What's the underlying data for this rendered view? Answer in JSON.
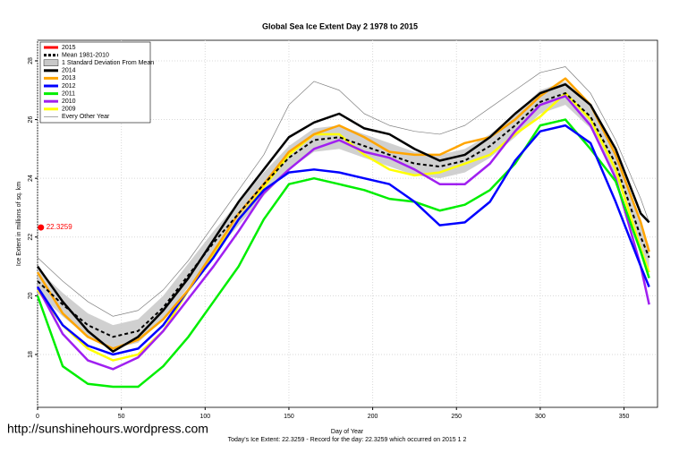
{
  "chart_data": {
    "type": "line",
    "title": "Global Sea Ice Extent Day 2 1978 to 2015",
    "x_label": "Day of Year",
    "y_label": "Ice Extent in millions of sq. km",
    "subtitle": "Today's Ice Extent: 22.3259  - Record for the day: 22.3259 which occurred on 2015 1 2",
    "watermark": "http://sunshinehours.wordpress.com",
    "xlim": [
      0,
      370
    ],
    "ylim": [
      16.2,
      28.7
    ],
    "xticks": [
      0,
      50,
      100,
      150,
      200,
      250,
      300,
      350
    ],
    "yticks": [
      18,
      20,
      22,
      24,
      26,
      28
    ],
    "grid": true,
    "legend": "top-left",
    "x": [
      0,
      15,
      30,
      45,
      60,
      75,
      90,
      105,
      120,
      135,
      150,
      165,
      180,
      195,
      210,
      225,
      240,
      255,
      270,
      285,
      300,
      315,
      330,
      345,
      360,
      365
    ],
    "series": [
      {
        "name": "2015",
        "color": "#ff0000",
        "x": [
          2
        ],
        "values": [
          22.3259
        ],
        "marker": true
      },
      {
        "name": "Mean 1981-2010",
        "color": "#000000",
        "dashed": true,
        "values": [
          20.5,
          19.7,
          19.0,
          18.6,
          18.8,
          19.6,
          20.7,
          21.8,
          22.8,
          23.8,
          24.7,
          25.3,
          25.4,
          25.1,
          24.8,
          24.5,
          24.4,
          24.6,
          25.1,
          25.8,
          26.6,
          26.9,
          26.1,
          24.5,
          22.0,
          21.3
        ]
      },
      {
        "name": "1 Standard Deviation From Mean",
        "color": "#c8c8c8",
        "band": true,
        "lower": [
          20.1,
          19.3,
          18.6,
          18.2,
          18.4,
          19.2,
          20.3,
          21.4,
          22.4,
          23.4,
          24.3,
          24.9,
          25.0,
          24.7,
          24.4,
          24.1,
          24.0,
          24.2,
          24.7,
          25.4,
          26.2,
          26.5,
          25.7,
          24.1,
          21.6,
          20.9
        ],
        "upper": [
          20.9,
          20.1,
          19.4,
          19.0,
          19.2,
          20.0,
          21.1,
          22.2,
          23.2,
          24.2,
          25.1,
          25.7,
          25.8,
          25.5,
          25.2,
          24.9,
          24.8,
          25.0,
          25.5,
          26.2,
          27.0,
          27.3,
          26.5,
          24.9,
          22.4,
          21.7
        ]
      },
      {
        "name": "2014",
        "color": "#000000",
        "width": 2.5,
        "values": [
          21.0,
          19.8,
          18.8,
          18.1,
          18.6,
          19.5,
          20.6,
          21.9,
          23.2,
          24.3,
          25.4,
          25.9,
          26.2,
          25.7,
          25.5,
          25.0,
          24.6,
          24.8,
          25.4,
          26.2,
          26.9,
          27.2,
          26.5,
          25.0,
          22.8,
          22.5
        ]
      },
      {
        "name": "2013",
        "color": "#ffa500",
        "width": 2.5,
        "values": [
          20.8,
          19.4,
          18.6,
          18.2,
          18.5,
          19.2,
          20.2,
          21.5,
          22.8,
          23.8,
          24.9,
          25.5,
          25.8,
          25.4,
          24.9,
          24.8,
          24.8,
          25.2,
          25.4,
          26.0,
          26.8,
          27.4,
          26.5,
          24.8,
          22.5,
          21.5
        ]
      },
      {
        "name": "2012",
        "color": "#0000ff",
        "width": 2.5,
        "values": [
          20.3,
          19.0,
          18.3,
          18.0,
          18.2,
          19.0,
          20.2,
          21.3,
          22.6,
          23.6,
          24.2,
          24.3,
          24.2,
          24.0,
          23.8,
          23.2,
          22.4,
          22.5,
          23.2,
          24.6,
          25.6,
          25.8,
          25.2,
          23.2,
          21.0,
          20.3
        ]
      },
      {
        "name": "2011",
        "color": "#00ee00",
        "width": 2.5,
        "values": [
          20.0,
          17.6,
          17.0,
          16.9,
          16.9,
          17.6,
          18.6,
          19.8,
          21.0,
          22.6,
          23.8,
          24.0,
          23.8,
          23.6,
          23.3,
          23.2,
          22.9,
          23.1,
          23.6,
          24.5,
          25.8,
          26.0,
          25.0,
          23.9,
          21.5,
          20.6
        ]
      },
      {
        "name": "2010",
        "color": "#a020f0",
        "width": 2.5,
        "values": [
          20.3,
          18.7,
          17.8,
          17.5,
          17.9,
          18.8,
          19.9,
          21.0,
          22.2,
          23.5,
          24.3,
          25.0,
          25.3,
          24.9,
          24.7,
          24.3,
          23.8,
          23.8,
          24.5,
          25.6,
          26.5,
          26.8,
          25.8,
          24.0,
          21.0,
          19.7
        ]
      },
      {
        "name": "2009",
        "color": "#ffff00",
        "width": 2.5,
        "values": [
          20.2,
          19.0,
          18.2,
          17.8,
          18.0,
          18.8,
          20.2,
          21.4,
          22.6,
          23.7,
          24.8,
          25.5,
          25.5,
          24.8,
          24.3,
          24.1,
          24.2,
          24.5,
          24.8,
          25.5,
          26.1,
          26.9,
          26.0,
          24.3,
          21.6,
          20.8
        ]
      },
      {
        "name": "Every Other Year",
        "color": "#808080",
        "width": 0.7,
        "values": [
          21.3,
          20.5,
          19.8,
          19.3,
          19.5,
          20.2,
          21.2,
          22.4,
          23.6,
          24.8,
          26.5,
          27.3,
          27.0,
          26.2,
          25.8,
          25.6,
          25.5,
          25.8,
          26.4,
          27.0,
          27.6,
          27.8,
          26.9,
          25.3,
          23.3,
          22.5
        ]
      }
    ]
  }
}
